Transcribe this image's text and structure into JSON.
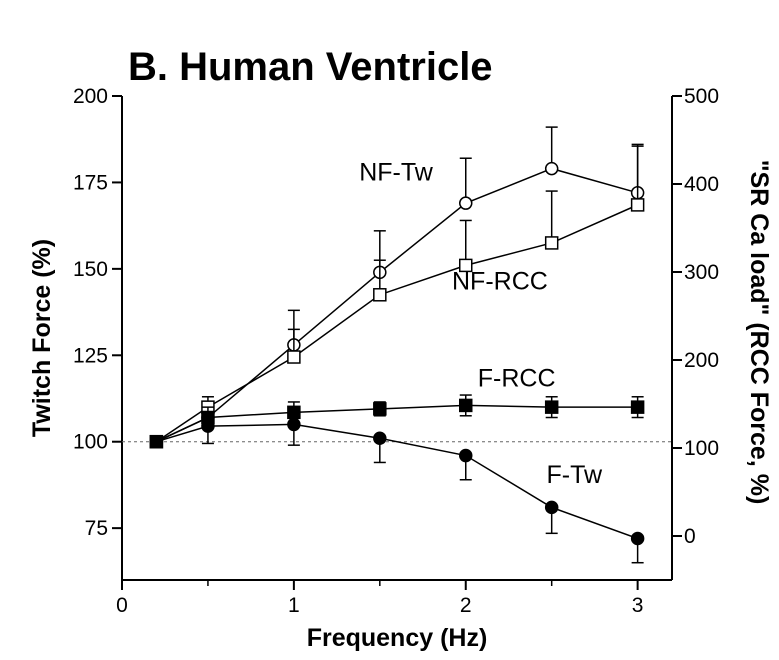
{
  "chart_data": {
    "type": "line",
    "title": "B. Human Ventricle",
    "xlabel": "Frequency (Hz)",
    "ylabel": "Twitch Force (%)",
    "y2label": "\"SR Ca load\" (RCC Force, %)",
    "xlim": [
      0,
      3.2
    ],
    "ylim": [
      60,
      200
    ],
    "y2lim": [
      -50,
      500
    ],
    "x_ticks": [
      "0",
      "1",
      "2",
      "3"
    ],
    "x_tick_values": [
      0,
      1,
      2,
      3
    ],
    "y_ticks": [
      "75",
      "100",
      "125",
      "150",
      "175",
      "200"
    ],
    "y_tick_values": [
      75,
      100,
      125,
      150,
      175,
      200
    ],
    "y2_ticks": [
      "0",
      "100",
      "200",
      "300",
      "400",
      "500"
    ],
    "y2_tick_values": [
      0,
      100,
      200,
      300,
      400,
      500
    ],
    "reference_line": 100,
    "grid": false,
    "series": [
      {
        "name": "NF-Tw",
        "axis": "left",
        "marker": "open-circle",
        "x": [
          0.2,
          0.5,
          1.0,
          1.5,
          2.0,
          2.5,
          3.0
        ],
        "y": [
          100,
          107,
          128,
          149,
          169,
          179,
          172
        ],
        "err": [
          0,
          3,
          10,
          12,
          13,
          12,
          14
        ]
      },
      {
        "name": "NF-RCC",
        "axis": "left",
        "marker": "open-square",
        "x": [
          0.2,
          0.5,
          1.0,
          1.5,
          2.0,
          2.5,
          3.0
        ],
        "y": [
          100,
          110,
          124.5,
          142.5,
          151,
          157.5,
          168.5
        ],
        "err": [
          0,
          3,
          8,
          10,
          13,
          15,
          17
        ]
      },
      {
        "name": "F-RCC",
        "axis": "left",
        "marker": "filled-square",
        "x": [
          0.2,
          0.5,
          1.0,
          1.5,
          2.0,
          2.5,
          3.0
        ],
        "y": [
          100,
          107,
          108.5,
          109.5,
          110.5,
          110,
          110
        ],
        "err": [
          0,
          3,
          3,
          2,
          3,
          3,
          3
        ]
      },
      {
        "name": "F-Tw",
        "axis": "left",
        "marker": "filled-circle",
        "x": [
          0.2,
          0.5,
          1.0,
          1.5,
          2.0,
          2.5,
          3.0
        ],
        "y": [
          100,
          104.5,
          105,
          101,
          96,
          81,
          72
        ],
        "err": [
          0,
          5,
          6,
          7,
          7,
          7.5,
          7
        ]
      }
    ],
    "annotations": [
      {
        "text": "NF-Tw",
        "x": 1.38,
        "y": 175.5
      },
      {
        "text": "NF-RCC",
        "x": 1.92,
        "y": 144
      },
      {
        "text": "F-RCC",
        "x": 2.07,
        "y": 116
      },
      {
        "text": "F-Tw",
        "x": 2.47,
        "y": 88
      }
    ]
  }
}
